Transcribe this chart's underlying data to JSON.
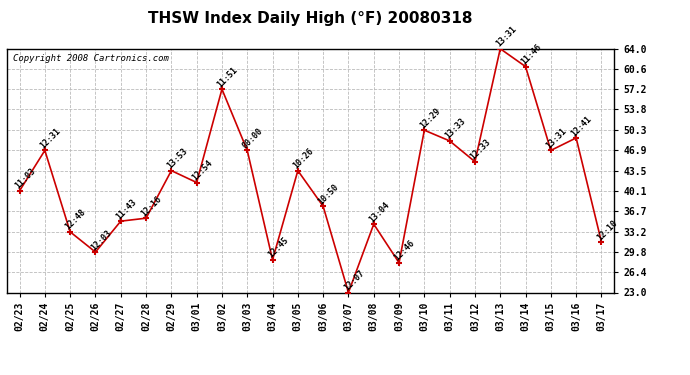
{
  "title": "THSW Index Daily High (°F) 20080318",
  "copyright": "Copyright 2008 Cartronics.com",
  "dates": [
    "02/23",
    "02/24",
    "02/25",
    "02/26",
    "02/27",
    "02/28",
    "02/29",
    "03/01",
    "03/02",
    "03/03",
    "03/04",
    "03/05",
    "03/06",
    "03/07",
    "03/08",
    "03/09",
    "03/10",
    "03/11",
    "03/12",
    "03/13",
    "03/14",
    "03/15",
    "03/16",
    "03/17"
  ],
  "values": [
    40.1,
    46.9,
    33.2,
    29.8,
    35.0,
    35.5,
    43.5,
    41.5,
    57.2,
    46.9,
    28.5,
    43.5,
    37.5,
    23.0,
    34.5,
    28.0,
    50.3,
    48.5,
    45.0,
    64.0,
    61.0,
    46.9,
    49.0,
    31.5
  ],
  "labels": [
    "11:03",
    "12:31",
    "12:48",
    "12:03",
    "11:43",
    "12:16",
    "13:53",
    "12:54",
    "11:51",
    "00:00",
    "12:45",
    "10:26",
    "10:50",
    "12:07",
    "13:04",
    "12:46",
    "12:29",
    "13:33",
    "12:33",
    "13:31",
    "11:46",
    "13:31",
    "12:41",
    "12:10"
  ],
  "yticks": [
    23.0,
    26.4,
    29.8,
    33.2,
    36.7,
    40.1,
    43.5,
    46.9,
    50.3,
    53.8,
    57.2,
    60.6,
    64.0
  ],
  "line_color": "#cc0000",
  "marker_color": "#cc0000",
  "bg_color": "#ffffff",
  "plot_bg_color": "#ffffff",
  "grid_color": "#bbbbbb",
  "title_fontsize": 11,
  "label_fontsize": 6,
  "tick_fontsize": 7,
  "copyright_fontsize": 6.5
}
